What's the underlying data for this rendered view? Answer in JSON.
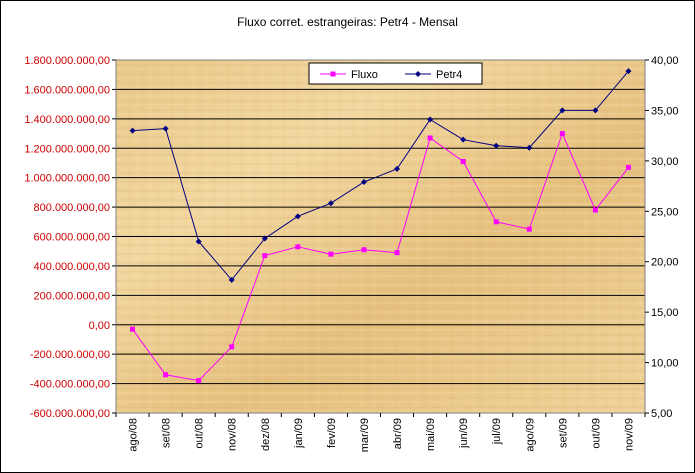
{
  "chart_data": {
    "type": "line",
    "title": "Fluxo corret. estrangeiras: Petr4 - Mensal",
    "categories": [
      "ago/08",
      "set/08",
      "out/08",
      "nov/08",
      "dez/08",
      "jan/09",
      "fev/09",
      "mar/09",
      "abr/09",
      "mai/09",
      "jun/09",
      "jul/09",
      "ago/09",
      "set/09",
      "out/09",
      "nov/09"
    ],
    "y_left": {
      "ylim": [
        -600000000,
        1800000000
      ],
      "ticks": [
        1800000000,
        1600000000,
        1400000000,
        1200000000,
        1000000000,
        800000000,
        600000000,
        400000000,
        200000000,
        0,
        -200000000,
        -400000000,
        -600000000
      ],
      "tick_labels": [
        "1.800.000.000,00",
        "1.600.000.000,00",
        "1.400.000.000,00",
        "1.200.000.000,00",
        "1.000.000.000,00",
        "800.000.000,00",
        "600.000.000,00",
        "400.000.000,00",
        "200.000.000,00",
        "0,00",
        "-200.000.000,00",
        "-400.000.000,00",
        "-600.000.000,00"
      ],
      "tick_color": "#cc0000"
    },
    "y_right": {
      "ylim": [
        5,
        40
      ],
      "ticks": [
        40,
        35,
        30,
        25,
        20,
        15,
        10,
        5
      ],
      "tick_labels": [
        "40,00",
        "35,00",
        "30,00",
        "25,00",
        "20,00",
        "15,00",
        "10,00",
        "5,00"
      ]
    },
    "series": [
      {
        "name": "Fluxo",
        "axis": "left",
        "color": "#ff00ff",
        "marker": "square",
        "values": [
          -30000000,
          -340000000,
          -380000000,
          -150000000,
          470000000,
          530000000,
          480000000,
          510000000,
          490000000,
          1270000000,
          1110000000,
          700000000,
          650000000,
          1300000000,
          780000000,
          1070000000
        ]
      },
      {
        "name": "Petr4",
        "axis": "right",
        "color": "#000080",
        "marker": "diamond",
        "values": [
          33.0,
          33.2,
          22.0,
          18.2,
          22.3,
          24.5,
          25.8,
          27.9,
          29.2,
          34.1,
          32.1,
          31.5,
          31.3,
          35.0,
          35.0,
          38.9
        ]
      }
    ],
    "grid": true,
    "legend": "top-center",
    "background": "papyrus"
  }
}
